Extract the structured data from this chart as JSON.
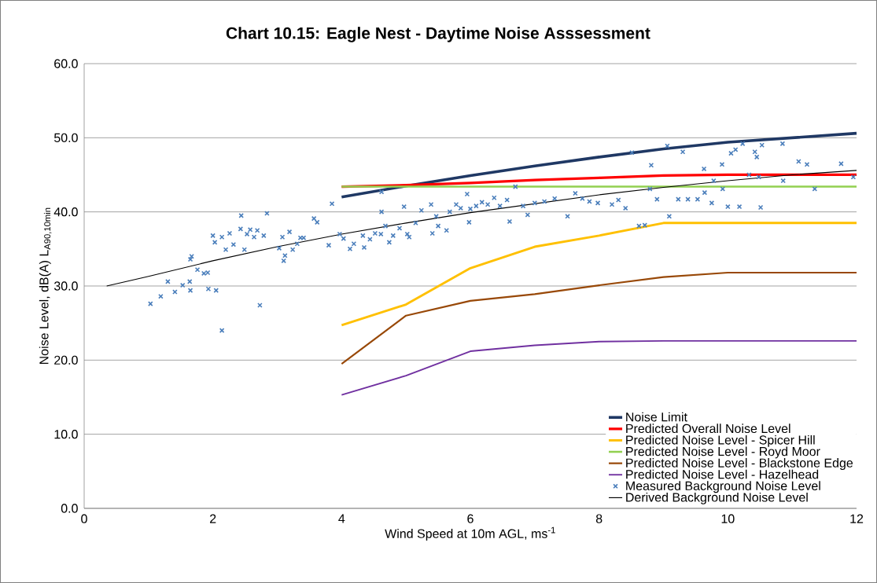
{
  "chart_data": {
    "type": "line",
    "title": "Chart 10.15:  Eagle Nest - Daytime Noise Asssessment",
    "xlabel": "Wind Speed at 10m AGL, ms$^{-1}$",
    "ylabel": "Noise Level, dB(A) L$_{A90,10min}$",
    "xlim": [
      0,
      12
    ],
    "xticks": [
      0,
      2,
      4,
      6,
      8,
      10,
      12
    ],
    "ylim": [
      0,
      60
    ],
    "yticks": [
      {
        "value": 0,
        "label": "0.0"
      },
      {
        "value": 10,
        "label": "10.0"
      },
      {
        "value": 20,
        "label": "20.0"
      },
      {
        "value": 30,
        "label": "30.0"
      },
      {
        "value": 40,
        "label": "40.0"
      },
      {
        "value": 50,
        "label": "50.0"
      },
      {
        "value": 60,
        "label": "60.0"
      }
    ],
    "grid": "y",
    "legend": "bottom right",
    "series": [
      {
        "name": "Noise Limit",
        "color": "#1f3864",
        "marker": "none",
        "x": [
          4,
          5,
          6,
          7,
          8,
          9,
          10,
          11,
          12
        ],
        "values": [
          42.0,
          43.5,
          44.9,
          46.2,
          47.4,
          48.5,
          49.4,
          50.0,
          50.6
        ]
      },
      {
        "name": "Predicted Overall Noise Level",
        "color": "#ff0000",
        "marker": "none",
        "x": [
          4,
          5,
          6,
          7,
          8,
          9,
          10,
          11,
          12
        ],
        "values": [
          43.4,
          43.6,
          43.9,
          44.3,
          44.6,
          44.9,
          45.0,
          45.0,
          45.0
        ]
      },
      {
        "name": "Predicted Noise Level - Spicer Hill",
        "color": "#ffc000",
        "marker": "none",
        "x": [
          4,
          5,
          6,
          7,
          8,
          9,
          10,
          11,
          12
        ],
        "values": [
          24.7,
          27.5,
          32.4,
          35.3,
          36.8,
          38.5,
          38.5,
          38.5,
          38.5
        ]
      },
      {
        "name": "Predicted Noise Level - Royd Moor",
        "color": "#92d050",
        "marker": "none",
        "x": [
          4,
          5,
          6,
          7,
          8,
          9,
          10,
          11,
          12
        ],
        "values": [
          43.4,
          43.4,
          43.4,
          43.4,
          43.4,
          43.4,
          43.4,
          43.4,
          43.4
        ]
      },
      {
        "name": "Predicted Noise Level - Blackstone Edge",
        "color": "#984807",
        "marker": "none",
        "x": [
          4,
          5,
          6,
          7,
          8,
          9,
          10,
          11,
          12
        ],
        "values": [
          19.5,
          26.0,
          28.0,
          28.9,
          30.1,
          31.2,
          31.8,
          31.8,
          31.8
        ]
      },
      {
        "name": "Predicted Noise Level - Hazelhead",
        "color": "#7030a0",
        "marker": "none",
        "x": [
          4,
          5,
          6,
          7,
          8,
          9,
          10,
          11,
          12
        ],
        "values": [
          15.3,
          17.9,
          21.2,
          22.0,
          22.5,
          22.6,
          22.6,
          22.6,
          22.6
        ]
      },
      {
        "name": "Measured Background Noise Level",
        "type": "scatter",
        "color": "#4a7ebb",
        "marker": "cross",
        "x": [
          1.03,
          1.19,
          1.3,
          1.41,
          1.53,
          1.64,
          1.65,
          1.67,
          1.65,
          1.76,
          1.86,
          1.92,
          1.93,
          2.0,
          2.03,
          2.05,
          2.14,
          2.14,
          2.2,
          2.26,
          2.32,
          2.43,
          2.44,
          2.49,
          2.53,
          2.58,
          2.64,
          2.69,
          2.73,
          2.79,
          2.84,
          3.03,
          3.08,
          3.1,
          3.12,
          3.19,
          3.24,
          3.31,
          3.36,
          3.41,
          3.57,
          3.62,
          3.8,
          3.85,
          3.97,
          4.03,
          4.13,
          4.19,
          4.33,
          4.35,
          4.44,
          4.52,
          4.61,
          4.62,
          4.62,
          4.68,
          4.74,
          4.8,
          4.9,
          4.97,
          5.02,
          5.05,
          5.15,
          5.24,
          5.39,
          5.41,
          5.47,
          5.5,
          5.63,
          5.68,
          5.78,
          5.85,
          5.95,
          5.98,
          6.0,
          6.09,
          6.18,
          6.27,
          6.37,
          6.46,
          6.57,
          6.61,
          6.7,
          6.82,
          6.89,
          7.0,
          7.15,
          7.31,
          7.51,
          7.63,
          7.74,
          7.85,
          7.98,
          8.2,
          8.3,
          8.41,
          8.51,
          8.62,
          8.71,
          8.79,
          8.81,
          8.9,
          9.06,
          9.09,
          9.23,
          9.3,
          9.38,
          9.53,
          9.63,
          9.64,
          9.75,
          9.78,
          9.91,
          9.92,
          10.0,
          10.05,
          10.12,
          10.18,
          10.23,
          10.33,
          10.42,
          10.45,
          10.48,
          10.51,
          10.53,
          10.86,
          10.85,
          11.1,
          11.23,
          11.35,
          11.76,
          11.95
        ],
        "values": [
          27.6,
          28.6,
          30.6,
          29.2,
          30.1,
          30.6,
          33.6,
          34.0,
          29.4,
          32.2,
          31.7,
          31.8,
          29.6,
          36.8,
          35.9,
          29.4,
          24.0,
          36.6,
          34.9,
          37.1,
          35.6,
          37.7,
          39.5,
          34.9,
          37.0,
          37.6,
          36.6,
          37.5,
          27.4,
          36.8,
          39.8,
          35.1,
          36.6,
          33.4,
          34.1,
          37.3,
          34.9,
          35.7,
          36.5,
          36.5,
          39.1,
          38.6,
          35.5,
          41.1,
          37.0,
          36.4,
          35.0,
          35.7,
          36.8,
          35.2,
          36.3,
          37.1,
          37.0,
          42.7,
          40.0,
          38.1,
          35.9,
          36.8,
          37.8,
          40.7,
          37.0,
          36.6,
          38.5,
          40.2,
          41.0,
          37.1,
          39.4,
          38.1,
          37.5,
          40.0,
          41.0,
          40.5,
          42.4,
          38.6,
          40.4,
          40.8,
          41.3,
          41.0,
          41.9,
          40.8,
          41.6,
          38.7,
          43.4,
          40.8,
          39.6,
          41.2,
          41.4,
          41.8,
          39.4,
          42.5,
          41.8,
          41.4,
          41.2,
          41.0,
          41.6,
          40.5,
          48.0,
          38.1,
          38.2,
          43.1,
          46.3,
          41.7,
          48.9,
          39.4,
          41.7,
          48.1,
          41.7,
          41.7,
          45.8,
          42.6,
          41.2,
          44.2,
          46.4,
          43.1,
          40.7,
          47.9,
          48.4,
          40.7,
          49.2,
          45.0,
          48.1,
          47.4,
          44.7,
          40.6,
          49.0,
          44.2,
          49.2,
          46.8,
          46.4,
          43.1,
          46.5,
          44.7
        ]
      },
      {
        "name": "Derived Background Noise Level",
        "color": "#000000",
        "marker": "none",
        "x": [
          0.35,
          1,
          2,
          3,
          4,
          5,
          6,
          7,
          8,
          9,
          10,
          11,
          12
        ],
        "values": [
          30.0,
          31.3,
          33.4,
          35.3,
          37.0,
          38.5,
          39.9,
          41.1,
          42.3,
          43.3,
          44.2,
          45.0,
          45.6
        ]
      }
    ]
  }
}
